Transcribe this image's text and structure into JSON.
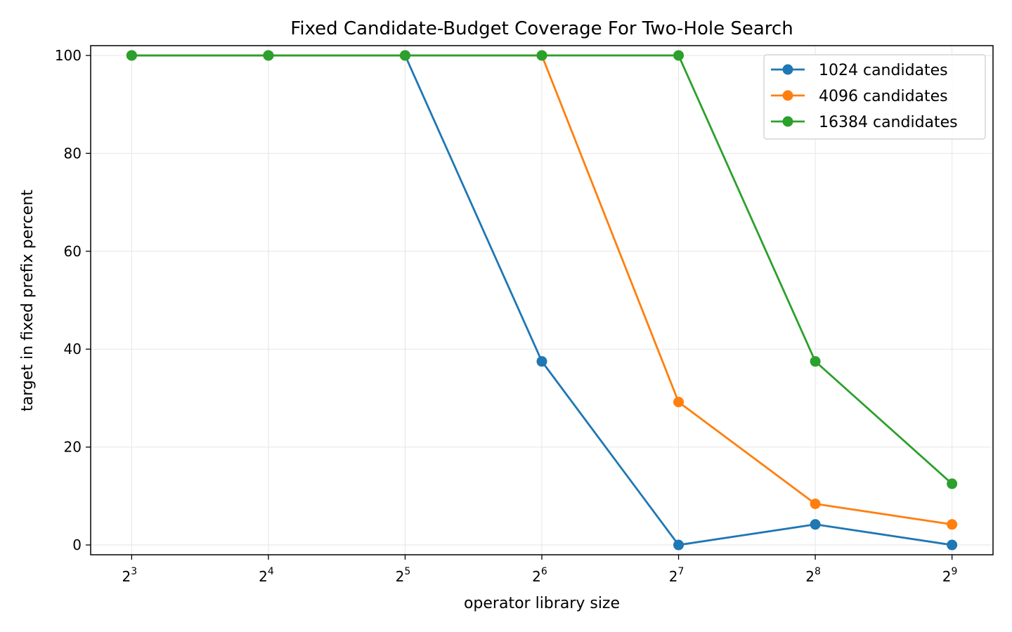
{
  "chart_data": {
    "type": "line",
    "title": "Fixed Candidate-Budget Coverage For Two-Hole Search",
    "xlabel": "operator library size",
    "ylabel": "target in fixed prefix percent",
    "x_scale": "log2",
    "x": [
      8,
      16,
      32,
      64,
      128,
      256,
      512
    ],
    "x_tick_labels": [
      {
        "base": "2",
        "exp": "3"
      },
      {
        "base": "2",
        "exp": "4"
      },
      {
        "base": "2",
        "exp": "5"
      },
      {
        "base": "2",
        "exp": "6"
      },
      {
        "base": "2",
        "exp": "7"
      },
      {
        "base": "2",
        "exp": "8"
      },
      {
        "base": "2",
        "exp": "9"
      }
    ],
    "y_ticks": [
      0,
      20,
      40,
      60,
      80,
      100
    ],
    "ylim": [
      -2,
      102
    ],
    "grid": true,
    "legend_position": "top-right",
    "series": [
      {
        "name": "1024 candidates",
        "color": "#1f77b4",
        "values": [
          100,
          100,
          100,
          37.5,
          0,
          4.2,
          0
        ]
      },
      {
        "name": "4096 candidates",
        "color": "#ff7f0e",
        "values": [
          100,
          100,
          100,
          100,
          29.2,
          8.4,
          4.2
        ]
      },
      {
        "name": "16384 candidates",
        "color": "#2ca02c",
        "values": [
          100,
          100,
          100,
          100,
          100,
          37.5,
          12.5
        ]
      }
    ]
  }
}
